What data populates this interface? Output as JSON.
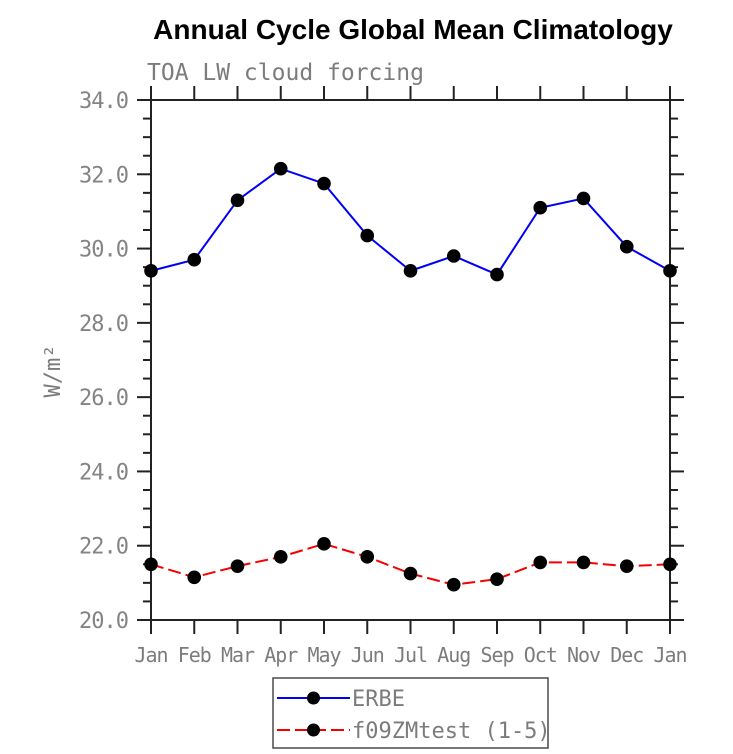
{
  "title": "Annual Cycle Global Mean Climatology",
  "subtitle": "TOA LW cloud forcing",
  "chart_data": {
    "type": "line",
    "title": "Annual Cycle Global Mean Climatology",
    "subtitle": "TOA LW cloud forcing",
    "ylabel": "W/m²",
    "xlabel": "",
    "categories": [
      "Jan",
      "Feb",
      "Mar",
      "Apr",
      "May",
      "Jun",
      "Jul",
      "Aug",
      "Sep",
      "Oct",
      "Nov",
      "Dec",
      "Jan"
    ],
    "series": [
      {
        "name": "ERBE",
        "color": "#0000f5",
        "line_style": "solid",
        "marker": "filled-circle",
        "marker_color": "#000000",
        "values": [
          29.4,
          29.7,
          31.3,
          32.15,
          31.75,
          30.35,
          29.4,
          29.8,
          29.3,
          31.1,
          31.35,
          30.05,
          29.4
        ]
      },
      {
        "name": "f09ZMtest (1-5)",
        "color": "#f50000",
        "line_style": "dashed",
        "marker": "filled-circle",
        "marker_color": "#000000",
        "values": [
          21.5,
          21.15,
          21.45,
          21.7,
          22.05,
          21.7,
          21.25,
          20.95,
          21.1,
          21.55,
          21.55,
          21.45,
          21.5
        ]
      }
    ],
    "ylim": [
      20.0,
      34.0
    ],
    "ytick_step": 2.0,
    "yminor_step": 0.5,
    "ytick_labels": [
      "20.0",
      "22.0",
      "24.0",
      "26.0",
      "28.0",
      "30.0",
      "32.0",
      "34.0"
    ],
    "grid": false,
    "legend_position": "bottom-center",
    "axis_color": "#222222",
    "label_color": "#7c7c7c"
  }
}
